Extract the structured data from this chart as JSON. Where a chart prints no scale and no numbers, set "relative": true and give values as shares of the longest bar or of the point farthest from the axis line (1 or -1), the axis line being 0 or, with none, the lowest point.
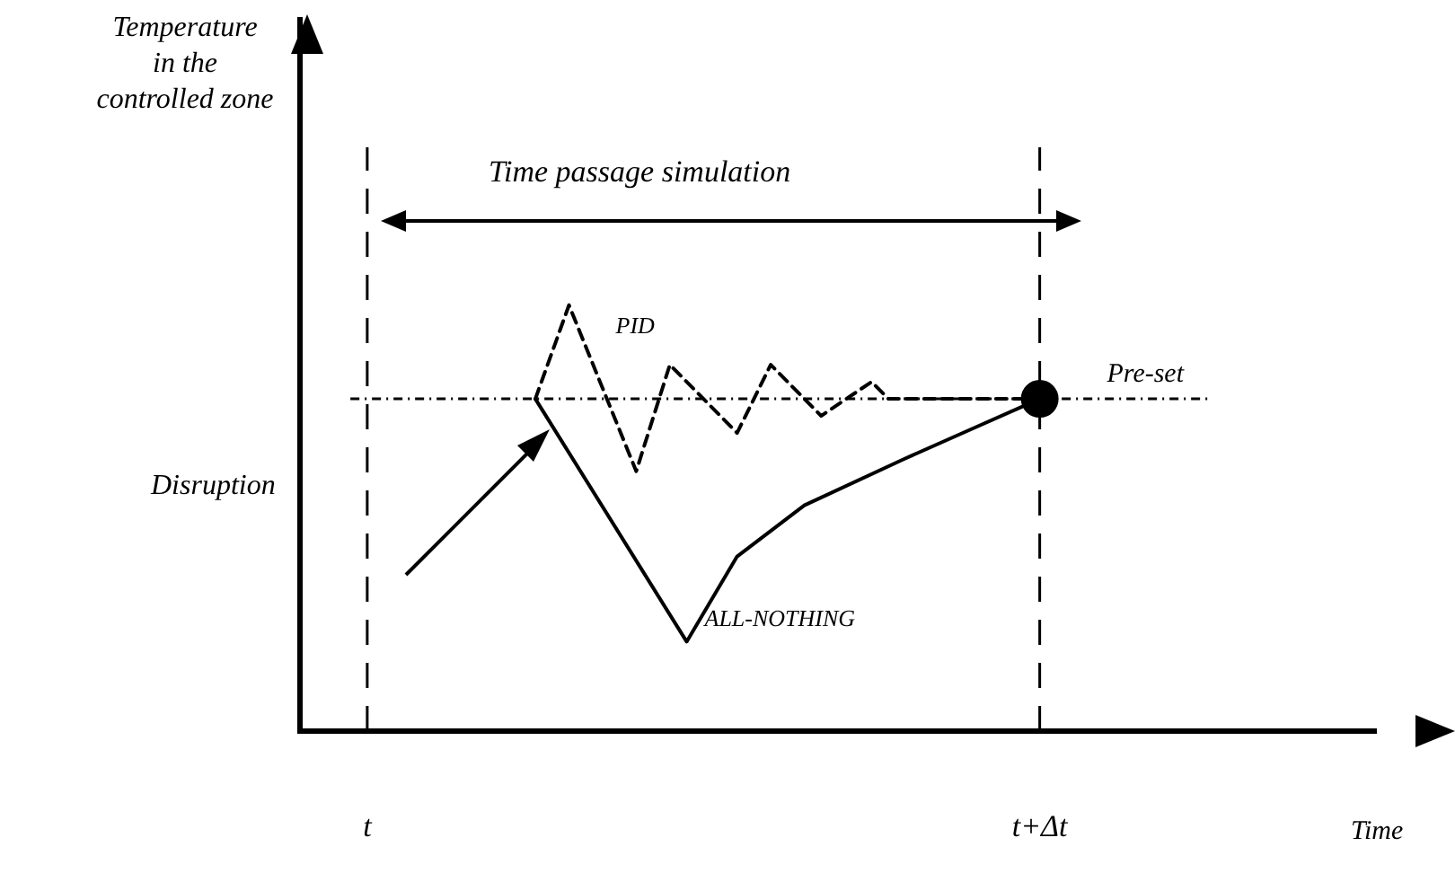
{
  "chart_data": {
    "type": "line",
    "relative": true,
    "xlabel": "Time",
    "categories": [
      null,
      null,
      null,
      null,
      "t",
      null,
      null,
      null,
      null,
      null,
      null,
      null,
      null,
      null,
      null,
      null,
      null,
      null,
      null,
      null,
      null,
      null,
      null,
      null,
      null,
      null,
      null,
      null,
      null,
      null,
      null,
      null,
      null,
      null,
      null,
      null,
      null,
      null,
      null,
      null,
      null,
      null,
      null,
      null,
      "t+Δt",
      null,
      null,
      null,
      null,
      null,
      null,
      null,
      null,
      null,
      null,
      null,
      null,
      null,
      null,
      null,
      null,
      null,
      null,
      null,
      null
    ],
    "series": [
      {
        "name": "PID",
        "color": "#000000",
        "line_style": "dashed",
        "marker": "none",
        "values": [
          null,
          null,
          null,
          null,
          null,
          null,
          null,
          null,
          null,
          null,
          null,
          null,
          null,
          null,
          0.78,
          null,
          1.0,
          null,
          null,
          null,
          0.61,
          null,
          0.86,
          null,
          null,
          null,
          0.7,
          null,
          0.86,
          null,
          null,
          0.74,
          null,
          null,
          0.82,
          0.78,
          null,
          null,
          null,
          null,
          null,
          null,
          null,
          null,
          0.78,
          null,
          null,
          null,
          null,
          null,
          null,
          null,
          null,
          null,
          null,
          null,
          null,
          null,
          null,
          null,
          null,
          null,
          null,
          null,
          null
        ]
      },
      {
        "name": "ALL-NOTHING",
        "color": "#000000",
        "line_style": "solid",
        "marker": "none",
        "values": [
          null,
          null,
          null,
          null,
          null,
          null,
          null,
          null,
          null,
          null,
          null,
          null,
          null,
          null,
          0.78,
          null,
          null,
          null,
          null,
          null,
          null,
          null,
          null,
          0.21,
          null,
          null,
          0.41,
          null,
          null,
          null,
          0.53,
          null,
          null,
          null,
          null,
          null,
          0.64,
          null,
          null,
          null,
          0.71,
          null,
          null,
          null,
          0.78,
          null,
          null,
          null,
          null,
          null,
          null,
          null,
          null,
          null,
          null,
          null,
          null,
          null,
          null,
          null,
          null,
          null,
          null,
          null,
          null
        ]
      },
      {
        "type": "scatter",
        "color": "#000000",
        "marker": "circle",
        "values": [
          null,
          null,
          null,
          null,
          null,
          null,
          null,
          null,
          null,
          null,
          null,
          null,
          null,
          null,
          null,
          null,
          null,
          null,
          null,
          null,
          null,
          null,
          null,
          null,
          null,
          null,
          null,
          null,
          null,
          null,
          null,
          null,
          null,
          null,
          null,
          null,
          null,
          null,
          null,
          null,
          null,
          null,
          null,
          null,
          0.78,
          null,
          null,
          null,
          null,
          null,
          null,
          null,
          null,
          null,
          null,
          null,
          null,
          null,
          null,
          null,
          null,
          null,
          null,
          null,
          null
        ]
      }
    ],
    "ref_lines": [
      {
        "axis": "y",
        "value": 0.78,
        "label": "Pre-set",
        "line_style": "dotted",
        "color": "#000000"
      }
    ],
    "annotations": [
      "Time passage simulation",
      "Disruption",
      "Temperature\nin the\ncontrolled zone"
    ],
    "grid": "x",
    "legend": false
  }
}
